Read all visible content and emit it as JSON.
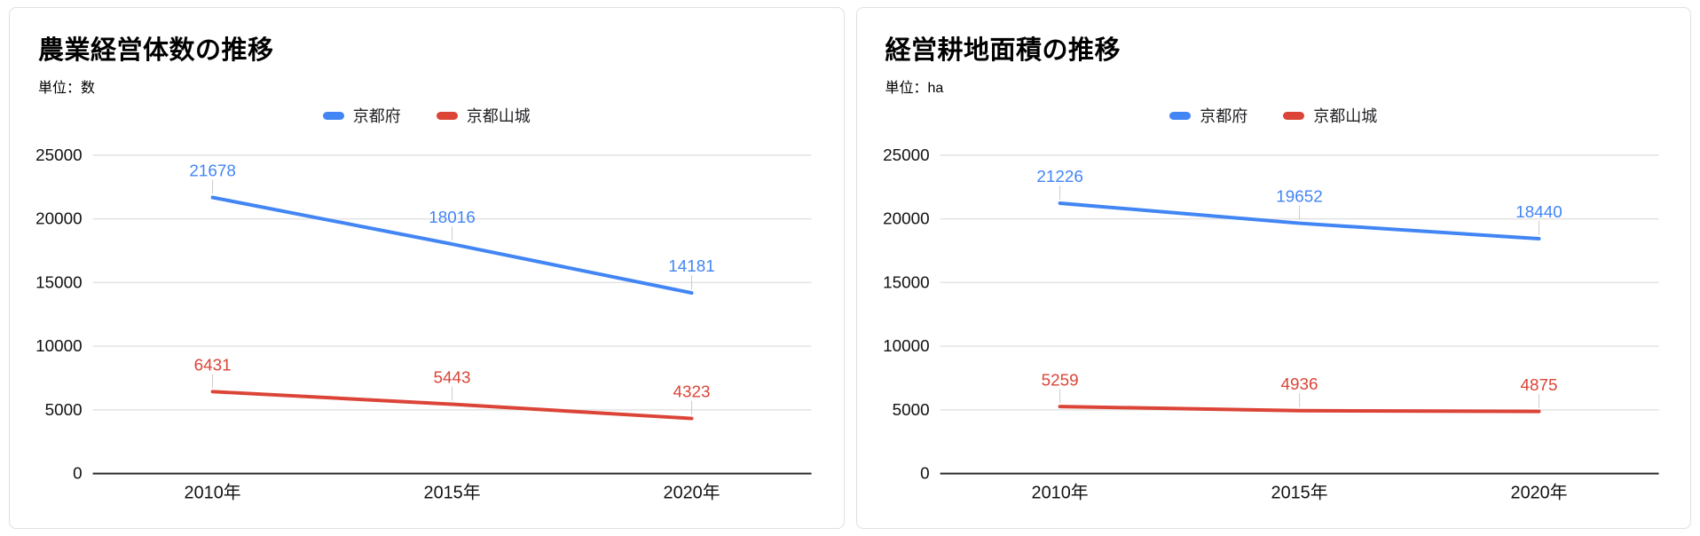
{
  "page": {
    "background": "#ffffff"
  },
  "styles": {
    "grid_color": "#e3e3e3",
    "axis_color": "#2b2b2b",
    "tick_text_color": "#111111",
    "label_stem_color": "#cccccc",
    "blue": "#4285f4",
    "red": "#db4437"
  },
  "chart_data": [
    {
      "type": "line",
      "title": "農業経営体数の推移",
      "unit_label": "単位：数",
      "categories": [
        "2010年",
        "2015年",
        "2020年"
      ],
      "series": [
        {
          "name": "京都府",
          "color": "#4285f4",
          "values": [
            21678,
            18016,
            14181
          ]
        },
        {
          "name": "京都山城",
          "color": "#db4437",
          "values": [
            6431,
            5443,
            4323
          ]
        }
      ],
      "ylim": [
        0,
        25000
      ],
      "yticks": [
        0,
        5000,
        10000,
        15000,
        20000,
        25000
      ],
      "grid": true,
      "legend_position": "top",
      "data_labels": true
    },
    {
      "type": "line",
      "title": "経営耕地面積の推移",
      "unit_label": "単位：ha",
      "categories": [
        "2010年",
        "2015年",
        "2020年"
      ],
      "series": [
        {
          "name": "京都府",
          "color": "#4285f4",
          "values": [
            21226,
            19652,
            18440
          ]
        },
        {
          "name": "京都山城",
          "color": "#db4437",
          "values": [
            5259,
            4936,
            4875
          ]
        }
      ],
      "ylim": [
        0,
        25000
      ],
      "yticks": [
        0,
        5000,
        10000,
        15000,
        20000,
        25000
      ],
      "grid": true,
      "legend_position": "top",
      "data_labels": true
    }
  ]
}
